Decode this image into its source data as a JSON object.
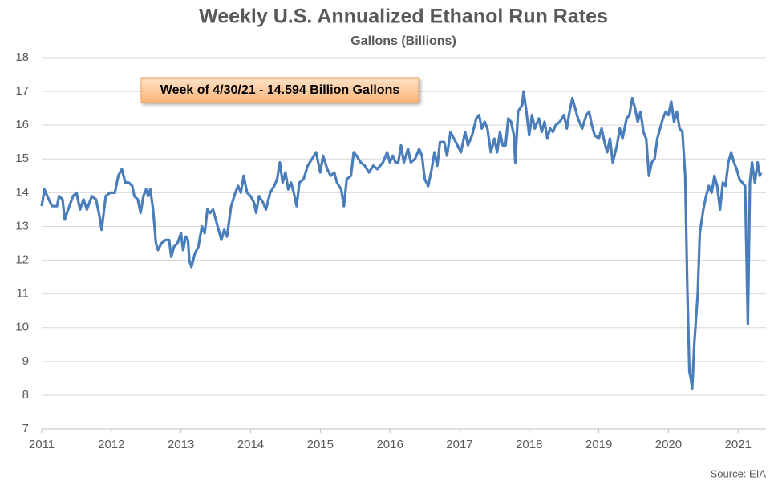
{
  "chart_data": {
    "type": "line",
    "title": "Weekly U.S. Annualized Ethanol Run Rates",
    "subtitle": "Gallons (Billions)",
    "annotation": "Week of 4/30/21 - 14.594 Billion Gallons",
    "source": "Source: EIA",
    "color": "#4a7ebb",
    "grid": true,
    "xlim": [
      2011,
      2021.4
    ],
    "xticks": [
      2011,
      2012,
      2013,
      2014,
      2015,
      2016,
      2017,
      2018,
      2019,
      2020,
      2021
    ],
    "ylim": [
      7,
      18
    ],
    "yticks": [
      7,
      8,
      9,
      10,
      11,
      12,
      13,
      14,
      15,
      16,
      17,
      18
    ],
    "x": [
      2011.0,
      2011.04,
      2011.08,
      2011.15,
      2011.22,
      2011.25,
      2011.3,
      2011.33,
      2011.38,
      2011.45,
      2011.5,
      2011.55,
      2011.6,
      2011.65,
      2011.72,
      2011.78,
      2011.83,
      2011.86,
      2011.92,
      2011.98,
      2012.05,
      2012.1,
      2012.15,
      2012.2,
      2012.25,
      2012.3,
      2012.33,
      2012.38,
      2012.42,
      2012.46,
      2012.5,
      2012.53,
      2012.56,
      2012.6,
      2012.64,
      2012.67,
      2012.72,
      2012.78,
      2012.83,
      2012.86,
      2012.9,
      2012.95,
      2013.0,
      2013.03,
      2013.07,
      2013.1,
      2013.12,
      2013.15,
      2013.2,
      2013.25,
      2013.3,
      2013.34,
      2013.38,
      2013.42,
      2013.46,
      2013.5,
      2013.54,
      2013.58,
      2013.62,
      2013.66,
      2013.72,
      2013.78,
      2013.82,
      2013.86,
      2013.9,
      2013.95,
      2014.0,
      2014.05,
      2014.08,
      2014.12,
      2014.18,
      2014.22,
      2014.28,
      2014.34,
      2014.38,
      2014.42,
      2014.46,
      2014.5,
      2014.54,
      2014.58,
      2014.62,
      2014.66,
      2014.7,
      2014.76,
      2014.82,
      2014.88,
      2014.94,
      2015.0,
      2015.04,
      2015.1,
      2015.15,
      2015.2,
      2015.24,
      2015.3,
      2015.34,
      2015.38,
      2015.44,
      2015.48,
      2015.52,
      2015.58,
      2015.64,
      2015.7,
      2015.76,
      2015.82,
      2015.9,
      2015.96,
      2016.0,
      2016.04,
      2016.08,
      2016.12,
      2016.16,
      2016.2,
      2016.26,
      2016.3,
      2016.36,
      2016.42,
      2016.46,
      2016.5,
      2016.55,
      2016.6,
      2016.64,
      2016.68,
      2016.72,
      2016.78,
      2016.82,
      2016.87,
      2016.92,
      2016.97,
      2017.02,
      2017.08,
      2017.12,
      2017.18,
      2017.24,
      2017.28,
      2017.32,
      2017.36,
      2017.4,
      2017.45,
      2017.5,
      2017.54,
      2017.58,
      2017.62,
      2017.66,
      2017.7,
      2017.74,
      2017.78,
      2017.8,
      2017.84,
      2017.9,
      2017.92,
      2017.96,
      2018.0,
      2018.04,
      2018.08,
      2018.14,
      2018.18,
      2018.22,
      2018.26,
      2018.3,
      2018.34,
      2018.38,
      2018.44,
      2018.5,
      2018.54,
      2018.58,
      2018.62,
      2018.66,
      2018.7,
      2018.76,
      2018.82,
      2018.86,
      2018.9,
      2018.94,
      2019.0,
      2019.04,
      2019.08,
      2019.12,
      2019.16,
      2019.2,
      2019.26,
      2019.3,
      2019.34,
      2019.4,
      2019.44,
      2019.48,
      2019.52,
      2019.56,
      2019.6,
      2019.64,
      2019.68,
      2019.72,
      2019.76,
      2019.8,
      2019.84,
      2019.88,
      2019.92,
      2019.96,
      2020.0,
      2020.04,
      2020.08,
      2020.12,
      2020.16,
      2020.2,
      2020.24,
      2020.27,
      2020.3,
      2020.32,
      2020.34,
      2020.37,
      2020.42,
      2020.45,
      2020.5,
      2020.54,
      2020.58,
      2020.62,
      2020.66,
      2020.7,
      2020.74,
      2020.78,
      2020.82,
      2020.86,
      2020.9,
      2020.94,
      2020.98,
      2021.02,
      2021.06,
      2021.1,
      2021.14,
      2021.17,
      2021.2,
      2021.24,
      2021.28,
      2021.31,
      2021.33
    ],
    "values": [
      13.6,
      14.1,
      13.9,
      13.6,
      13.6,
      13.9,
      13.8,
      13.2,
      13.5,
      13.9,
      14.0,
      13.5,
      13.8,
      13.5,
      13.9,
      13.8,
      13.3,
      12.9,
      13.9,
      14.0,
      14.0,
      14.5,
      14.7,
      14.3,
      14.3,
      14.2,
      13.9,
      13.8,
      13.4,
      13.9,
      14.1,
      13.9,
      14.1,
      13.5,
      12.5,
      12.3,
      12.5,
      12.6,
      12.6,
      12.1,
      12.4,
      12.5,
      12.8,
      12.3,
      12.7,
      12.6,
      12.0,
      11.8,
      12.2,
      12.4,
      13.0,
      12.8,
      13.5,
      13.4,
      13.5,
      13.2,
      12.9,
      12.6,
      12.9,
      12.7,
      13.6,
      14.0,
      14.2,
      14.0,
      14.5,
      14.0,
      13.9,
      13.7,
      13.4,
      13.9,
      13.7,
      13.5,
      14.0,
      14.2,
      14.4,
      14.9,
      14.3,
      14.6,
      14.1,
      14.3,
      14.0,
      13.6,
      14.3,
      14.4,
      14.8,
      15.0,
      15.2,
      14.6,
      15.1,
      14.7,
      14.5,
      14.6,
      14.3,
      14.1,
      13.6,
      14.4,
      14.5,
      15.2,
      15.1,
      14.9,
      14.8,
      14.6,
      14.8,
      14.7,
      14.9,
      15.2,
      14.9,
      15.1,
      14.9,
      14.9,
      15.4,
      14.9,
      15.3,
      14.9,
      15.0,
      15.3,
      15.1,
      14.4,
      14.2,
      14.7,
      15.2,
      14.8,
      15.5,
      15.5,
      15.1,
      15.8,
      15.6,
      15.4,
      15.2,
      15.8,
      15.4,
      15.7,
      16.2,
      16.3,
      15.9,
      16.1,
      15.9,
      15.2,
      15.6,
      15.2,
      15.8,
      15.4,
      15.4,
      16.2,
      16.1,
      15.7,
      14.9,
      16.4,
      16.6,
      17.0,
      16.4,
      15.7,
      16.3,
      15.9,
      16.2,
      15.8,
      16.1,
      15.6,
      15.9,
      15.8,
      16.0,
      16.1,
      16.3,
      15.9,
      16.4,
      16.8,
      16.5,
      16.2,
      15.9,
      16.3,
      16.4,
      16.0,
      15.7,
      15.6,
      15.9,
      15.5,
      15.2,
      15.6,
      14.9,
      15.4,
      15.9,
      15.6,
      16.2,
      16.3,
      16.8,
      16.5,
      16.1,
      16.4,
      15.8,
      15.6,
      14.5,
      14.9,
      15.0,
      15.6,
      15.9,
      16.2,
      16.4,
      16.3,
      16.7,
      16.1,
      16.4,
      15.9,
      15.8,
      14.5,
      11.2,
      8.7,
      8.5,
      8.2,
      9.5,
      11.0,
      12.8,
      13.5,
      13.9,
      14.2,
      14.0,
      14.5,
      14.2,
      13.5,
      14.3,
      14.2,
      14.9,
      15.2,
      14.9,
      14.7,
      14.4,
      14.3,
      14.2,
      10.1,
      14.3,
      14.9,
      14.3,
      14.9,
      14.5,
      14.594
    ]
  }
}
